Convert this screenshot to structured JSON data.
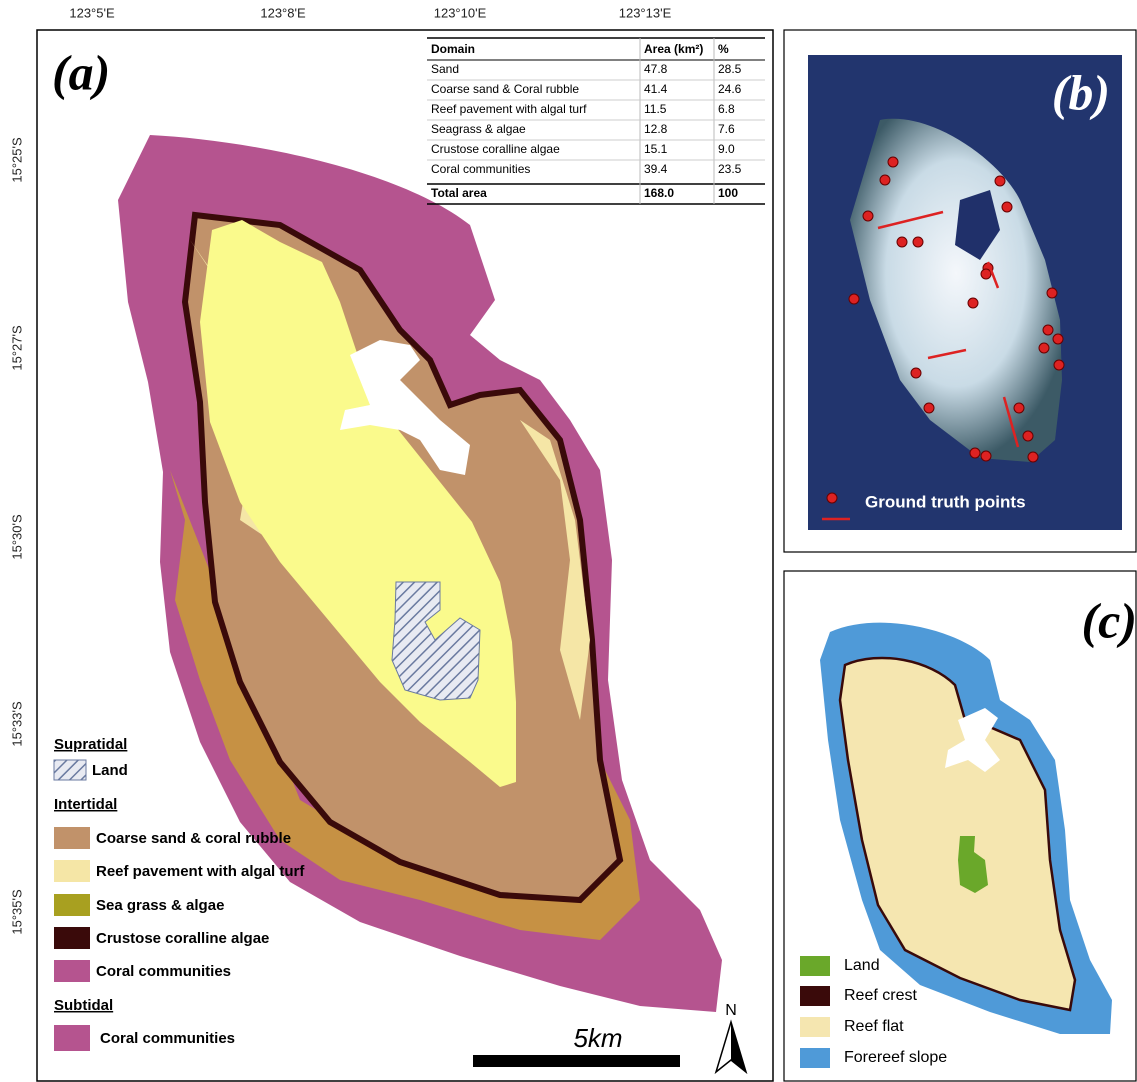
{
  "panel_a": {
    "label": "(a)",
    "longitude_labels": [
      "123°5'E",
      "123°8'E",
      "123°10'E",
      "123°13'E"
    ],
    "latitude_labels": [
      "15°25'S",
      "15°27'S",
      "15°30'S",
      "15°33'S",
      "15°35'S"
    ],
    "table": {
      "header": [
        "Domain",
        "Area (km²)",
        "%"
      ],
      "rows": [
        [
          "Sand",
          "47.8",
          "28.5"
        ],
        [
          "Coarse sand & Coral rubble",
          "41.4",
          "24.6"
        ],
        [
          "Reef pavement with algal turf",
          "11.5",
          "6.8"
        ],
        [
          "Seagrass & algae",
          "12.8",
          "7.6"
        ],
        [
          "Crustose coralline algae",
          "15.1",
          "9.0"
        ],
        [
          "Coral communities",
          "39.4",
          "23.5"
        ]
      ],
      "total": [
        "Total area",
        "168.0",
        "100"
      ]
    },
    "legend": [
      {
        "title": "Supratidal",
        "items": [
          "Land"
        ]
      },
      {
        "title": "Intertidal",
        "items": [
          "Coarse sand & coral rubble",
          "Reef pavement with algal turf",
          "Sea grass & algae",
          "Crustose coralline algae",
          "Coral communities"
        ]
      },
      {
        "title": "Subtidal",
        "items": [
          "Coral communities"
        ]
      }
    ],
    "scale_bar": "5km",
    "north": "N"
  },
  "panel_b": {
    "label": "(b)",
    "legend": "Ground truth points"
  },
  "panel_c": {
    "label": "(c)",
    "legend": [
      "Land",
      "Reef crest",
      "Reef flat",
      "Forereef slope"
    ]
  }
}
